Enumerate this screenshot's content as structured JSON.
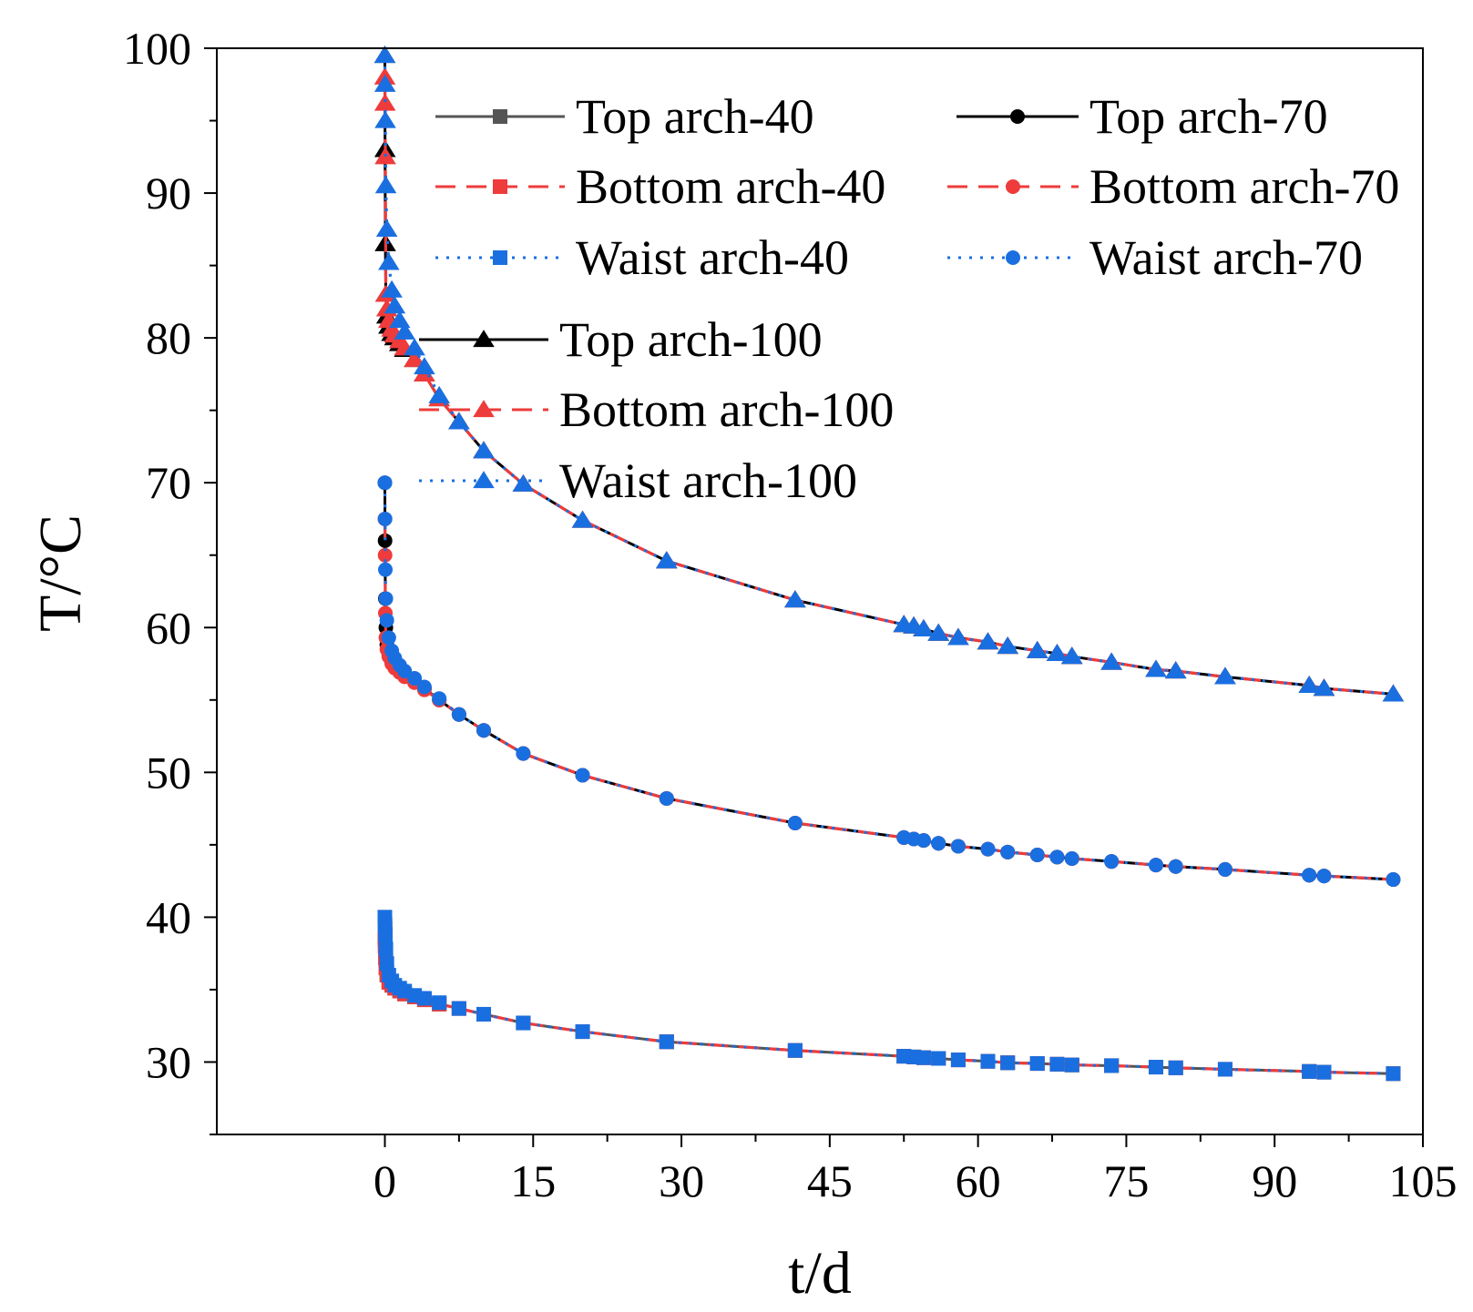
{
  "chart_data": {
    "type": "line",
    "title": "",
    "xlabel": "t/d",
    "ylabel": "T/°C",
    "xlim": [
      -17,
      105
    ],
    "ylim": [
      25,
      100
    ],
    "xticks": [
      0,
      15,
      30,
      45,
      60,
      75,
      90,
      105
    ],
    "yticks": [
      30,
      40,
      50,
      60,
      70,
      80,
      90,
      100
    ],
    "xtick_labels": [
      "0",
      "15",
      "30",
      "45",
      "60",
      "75",
      "90",
      "105"
    ],
    "ytick_labels": [
      "30",
      "40",
      "50",
      "60",
      "70",
      "80",
      "90",
      "100"
    ],
    "grid": false,
    "legend_position": "top-right",
    "colors": {
      "top": "#000000",
      "top40": "#555555",
      "bottom": "#ee3b3b",
      "waist": "#1a6fe0"
    },
    "series": [
      {
        "name": "Top arch-40",
        "style": "solid",
        "color": "#555555",
        "marker": "square",
        "x": [
          0,
          0.02,
          0.05,
          0.1,
          0.2,
          0.4,
          0.7,
          1,
          1.5,
          2,
          3,
          4,
          5.5,
          7.5,
          10,
          14,
          20,
          28.5,
          41.5,
          52.5,
          53.5,
          54.5,
          56,
          58,
          61,
          63,
          66,
          68,
          69.5,
          73.5,
          78,
          80,
          85,
          93.5,
          95,
          102
        ],
        "y": [
          40,
          39.2,
          38.2,
          37,
          36.2,
          35.6,
          35.3,
          35.1,
          34.9,
          34.7,
          34.5,
          34.3,
          34,
          33.7,
          33.3,
          32.7,
          32.1,
          31.4,
          30.8,
          30.4,
          30.35,
          30.3,
          30.25,
          30.15,
          30.05,
          29.95,
          29.9,
          29.85,
          29.8,
          29.75,
          29.65,
          29.6,
          29.5,
          29.35,
          29.3,
          29.2
        ]
      },
      {
        "name": "Bottom arch-40",
        "style": "dashed",
        "color": "#ee3b3b",
        "marker": "square",
        "x": [
          0,
          0.02,
          0.05,
          0.1,
          0.2,
          0.4,
          0.7,
          1,
          1.5,
          2,
          3,
          4,
          5.5,
          7.5,
          10,
          14,
          20,
          28.5,
          41.5,
          52.5,
          53.5,
          54.5,
          56,
          58,
          61,
          63,
          66,
          68,
          69.5,
          73.5,
          78,
          80,
          85,
          93.5,
          95,
          102
        ],
        "y": [
          38.5,
          38,
          37.2,
          36.5,
          36,
          35.5,
          35.3,
          35.1,
          34.9,
          34.7,
          34.5,
          34.3,
          34,
          33.7,
          33.3,
          32.7,
          32.1,
          31.4,
          30.8,
          30.4,
          30.35,
          30.3,
          30.25,
          30.15,
          30.05,
          29.95,
          29.9,
          29.85,
          29.8,
          29.75,
          29.65,
          29.6,
          29.5,
          29.35,
          29.3,
          29.2
        ]
      },
      {
        "name": "Waist arch-40",
        "style": "dotted",
        "color": "#1a6fe0",
        "marker": "square",
        "x": [
          0,
          0.02,
          0.05,
          0.1,
          0.2,
          0.4,
          0.7,
          1,
          1.5,
          2,
          3,
          4,
          5.5,
          7.5,
          10,
          14,
          20,
          28.5,
          41.5,
          52.5,
          53.5,
          54.5,
          56,
          58,
          61,
          63,
          66,
          68,
          69.5,
          73.5,
          78,
          80,
          85,
          93.5,
          95,
          102
        ],
        "y": [
          40,
          39.5,
          38.8,
          37.8,
          36.8,
          36,
          35.6,
          35.3,
          35.1,
          34.9,
          34.6,
          34.4,
          34.1,
          33.7,
          33.3,
          32.7,
          32.1,
          31.4,
          30.8,
          30.4,
          30.35,
          30.3,
          30.25,
          30.15,
          30.05,
          29.95,
          29.9,
          29.85,
          29.8,
          29.75,
          29.65,
          29.6,
          29.5,
          29.35,
          29.3,
          29.2
        ]
      },
      {
        "name": "Top arch-70",
        "style": "solid",
        "color": "#000000",
        "marker": "circle",
        "x": [
          0,
          0.02,
          0.05,
          0.1,
          0.2,
          0.4,
          0.7,
          1,
          1.5,
          2,
          3,
          4,
          5.5,
          7.5,
          10,
          14,
          20,
          28.5,
          41.5,
          52.5,
          53.5,
          54.5,
          56,
          58,
          61,
          63,
          66,
          68,
          69.5,
          73.5,
          78,
          80,
          85,
          93.5,
          95,
          102
        ],
        "y": [
          70,
          66,
          62,
          60,
          58.8,
          58.1,
          57.6,
          57.3,
          57,
          56.7,
          56.3,
          55.8,
          55,
          54,
          52.9,
          51.3,
          49.8,
          48.2,
          46.5,
          45.5,
          45.4,
          45.3,
          45.1,
          44.9,
          44.7,
          44.5,
          44.3,
          44.15,
          44.05,
          43.85,
          43.6,
          43.5,
          43.3,
          42.9,
          42.85,
          42.6
        ]
      },
      {
        "name": "Bottom arch-70",
        "style": "dashed",
        "color": "#ee3b3b",
        "marker": "circle",
        "x": [
          0,
          0.02,
          0.05,
          0.1,
          0.2,
          0.4,
          0.7,
          1,
          1.5,
          2,
          3,
          4,
          5.5,
          7.5,
          10,
          14,
          20,
          28.5,
          41.5,
          52.5,
          53.5,
          54.5,
          56,
          58,
          61,
          63,
          66,
          68,
          69.5,
          73.5,
          78,
          80,
          85,
          93.5,
          95,
          102
        ],
        "y": [
          67.5,
          65,
          61,
          59.3,
          58.5,
          58,
          57.5,
          57.2,
          56.9,
          56.6,
          56.2,
          55.7,
          55,
          54,
          52.9,
          51.3,
          49.8,
          48.2,
          46.5,
          45.5,
          45.4,
          45.3,
          45.1,
          44.9,
          44.7,
          44.5,
          44.3,
          44.15,
          44.05,
          43.85,
          43.6,
          43.5,
          43.3,
          42.9,
          42.85,
          42.6
        ]
      },
      {
        "name": "Waist arch-70",
        "style": "dotted",
        "color": "#1a6fe0",
        "marker": "circle",
        "x": [
          0,
          0.02,
          0.05,
          0.1,
          0.2,
          0.4,
          0.7,
          1,
          1.5,
          2,
          3,
          4,
          5.5,
          7.5,
          10,
          14,
          20,
          28.5,
          41.5,
          52.5,
          53.5,
          54.5,
          56,
          58,
          61,
          63,
          66,
          68,
          69.5,
          73.5,
          78,
          80,
          85,
          93.5,
          95,
          102
        ],
        "y": [
          70,
          67.5,
          64,
          62,
          60.5,
          59.3,
          58.4,
          57.9,
          57.4,
          57,
          56.5,
          55.9,
          55.1,
          54,
          52.9,
          51.3,
          49.8,
          48.2,
          46.5,
          45.5,
          45.4,
          45.3,
          45.1,
          44.9,
          44.7,
          44.5,
          44.3,
          44.15,
          44.05,
          43.85,
          43.6,
          43.5,
          43.3,
          42.9,
          42.85,
          42.6
        ]
      },
      {
        "name": "Top arch-100",
        "style": "solid",
        "color": "#000000",
        "marker": "triangle",
        "x": [
          0,
          0.02,
          0.05,
          0.1,
          0.2,
          0.4,
          0.7,
          1,
          1.5,
          2,
          3,
          4,
          5.5,
          7.5,
          10,
          14,
          20,
          28.5,
          41.5,
          52.5,
          53.5,
          54.5,
          56,
          58,
          61,
          63,
          66,
          68,
          69.5,
          73.5,
          78,
          80,
          85,
          93.5,
          95,
          102
        ],
        "y": [
          99.5,
          93,
          86.5,
          83,
          81.5,
          80.8,
          80.3,
          80,
          79.6,
          79.2,
          78.5,
          77.5,
          75.8,
          74.2,
          72.2,
          69.9,
          67.4,
          64.6,
          61.9,
          60.2,
          60.1,
          59.9,
          59.6,
          59.3,
          59,
          58.7,
          58.4,
          58.2,
          58,
          57.6,
          57.1,
          57,
          56.6,
          56,
          55.8,
          55.4
        ]
      },
      {
        "name": "Bottom arch-100",
        "style": "dashed",
        "color": "#ee3b3b",
        "marker": "triangle",
        "x": [
          0,
          0.02,
          0.05,
          0.1,
          0.2,
          0.4,
          0.7,
          1,
          1.5,
          2,
          3,
          4,
          5.5,
          7.5,
          10,
          14,
          20,
          28.5,
          41.5,
          52.5,
          53.5,
          54.5,
          56,
          58,
          61,
          63,
          66,
          68,
          69.5,
          73.5,
          78,
          80,
          85,
          93.5,
          95,
          102
        ],
        "y": [
          98,
          96.2,
          92.5,
          83,
          82,
          81.2,
          80.6,
          80.2,
          79.8,
          79.3,
          78.5,
          77.5,
          75.8,
          74.2,
          72.2,
          69.9,
          67.4,
          64.6,
          61.9,
          60.2,
          60.1,
          59.9,
          59.6,
          59.3,
          59,
          58.7,
          58.4,
          58.2,
          58,
          57.6,
          57.1,
          57,
          56.6,
          56,
          55.8,
          55.4
        ]
      },
      {
        "name": "Waist arch-100",
        "style": "dotted",
        "color": "#1a6fe0",
        "marker": "triangle",
        "x": [
          0,
          0.02,
          0.05,
          0.1,
          0.2,
          0.4,
          0.7,
          1,
          1.5,
          2,
          3,
          4,
          5.5,
          7.5,
          10,
          14,
          20,
          28.5,
          41.5,
          52.5,
          53.5,
          54.5,
          56,
          58,
          61,
          63,
          66,
          68,
          69.5,
          73.5,
          78,
          80,
          85,
          93.5,
          95,
          102
        ],
        "y": [
          99.5,
          97.5,
          95,
          90.5,
          87.5,
          85.2,
          83.3,
          82.2,
          81.2,
          80.4,
          79.3,
          78,
          76,
          74.2,
          72.2,
          69.9,
          67.4,
          64.6,
          61.9,
          60.2,
          60.1,
          59.9,
          59.6,
          59.3,
          59,
          58.7,
          58.4,
          58.2,
          58,
          57.6,
          57.1,
          57,
          56.6,
          56,
          55.8,
          55.4
        ]
      }
    ]
  }
}
